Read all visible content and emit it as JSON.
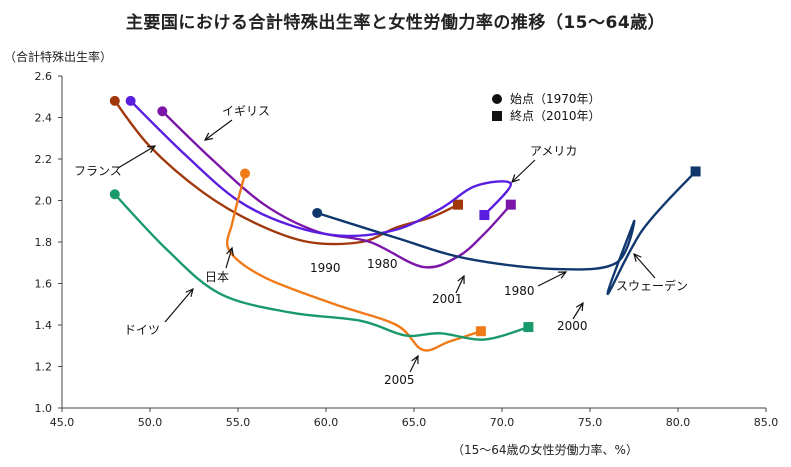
{
  "chart_data": {
    "type": "line",
    "title": "主要国における合計特殊出生率と女性労働力率の推移（15〜64歳）",
    "ylabel": "（合計特殊出生率）",
    "xlabel": "（15〜64歳の女性労働力率、%）",
    "xlim": [
      45.0,
      85.0
    ],
    "ylim": [
      1.0,
      2.6
    ],
    "xticks": [
      "45.0",
      "50.0",
      "55.0",
      "60.0",
      "65.0",
      "70.0",
      "75.0",
      "80.0",
      "85.0"
    ],
    "yticks": [
      "1.0",
      "1.2",
      "1.4",
      "1.6",
      "1.8",
      "2.0",
      "2.2",
      "2.4",
      "2.6"
    ],
    "legend": {
      "start": "始点（1970年）",
      "end": "終点（2010年）",
      "position": "top-right"
    },
    "series": [
      {
        "name": "フランス",
        "color": "#a0380c",
        "x": [
          48.0,
          50.0,
          53.0,
          56.0,
          59.0,
          62.0,
          64.0,
          66.0,
          67.5
        ],
        "y": [
          2.48,
          2.26,
          2.04,
          1.89,
          1.8,
          1.8,
          1.87,
          1.92,
          1.98
        ]
      },
      {
        "name": "イギリス",
        "color": "#7b16a8",
        "x": [
          50.7,
          53.5,
          56.5,
          59.5,
          62.5,
          65.5,
          67.5,
          69.0,
          70.5
        ],
        "y": [
          2.43,
          2.2,
          1.98,
          1.85,
          1.8,
          1.68,
          1.73,
          1.84,
          1.98
        ]
      },
      {
        "name": "アメリカ",
        "color": "#5a1ee0",
        "x": [
          48.9,
          52.0,
          55.0,
          58.0,
          61.0,
          64.0,
          66.5,
          68.5,
          70.5,
          69.0
        ],
        "y": [
          2.48,
          2.22,
          2.0,
          1.88,
          1.83,
          1.86,
          1.96,
          2.07,
          2.08,
          1.93
        ]
      },
      {
        "name": "日本",
        "color": "#f07a18",
        "x": [
          55.4,
          54.7,
          54.5,
          56.5,
          60.5,
          64.0,
          65.5,
          67.0,
          68.8
        ],
        "y": [
          2.13,
          1.9,
          1.76,
          1.63,
          1.5,
          1.4,
          1.28,
          1.32,
          1.37
        ]
      },
      {
        "name": "ドイツ",
        "color": "#1a9a6a",
        "x": [
          48.0,
          51.0,
          54.0,
          58.0,
          62.0,
          64.5,
          66.5,
          69.0,
          71.5
        ],
        "y": [
          2.03,
          1.76,
          1.55,
          1.46,
          1.42,
          1.35,
          1.36,
          1.33,
          1.39
        ]
      },
      {
        "name": "スウェーデン",
        "color": "#10386e",
        "x": [
          59.5,
          64.0,
          68.0,
          73.0,
          76.5,
          77.5,
          76.0,
          78.0,
          81.0
        ],
        "y": [
          1.94,
          1.82,
          1.72,
          1.67,
          1.7,
          1.9,
          1.55,
          1.86,
          2.14
        ]
      }
    ],
    "annotations": [
      {
        "text": "フランス"
      },
      {
        "text": "イギリス"
      },
      {
        "text": "アメリカ"
      },
      {
        "text": "日本"
      },
      {
        "text": "ドイツ"
      },
      {
        "text": "スウェーデン"
      },
      {
        "text": "1990"
      },
      {
        "text": "1980"
      },
      {
        "text": "2001"
      },
      {
        "text": "1980"
      },
      {
        "text": "2000"
      },
      {
        "text": "2005"
      }
    ]
  }
}
